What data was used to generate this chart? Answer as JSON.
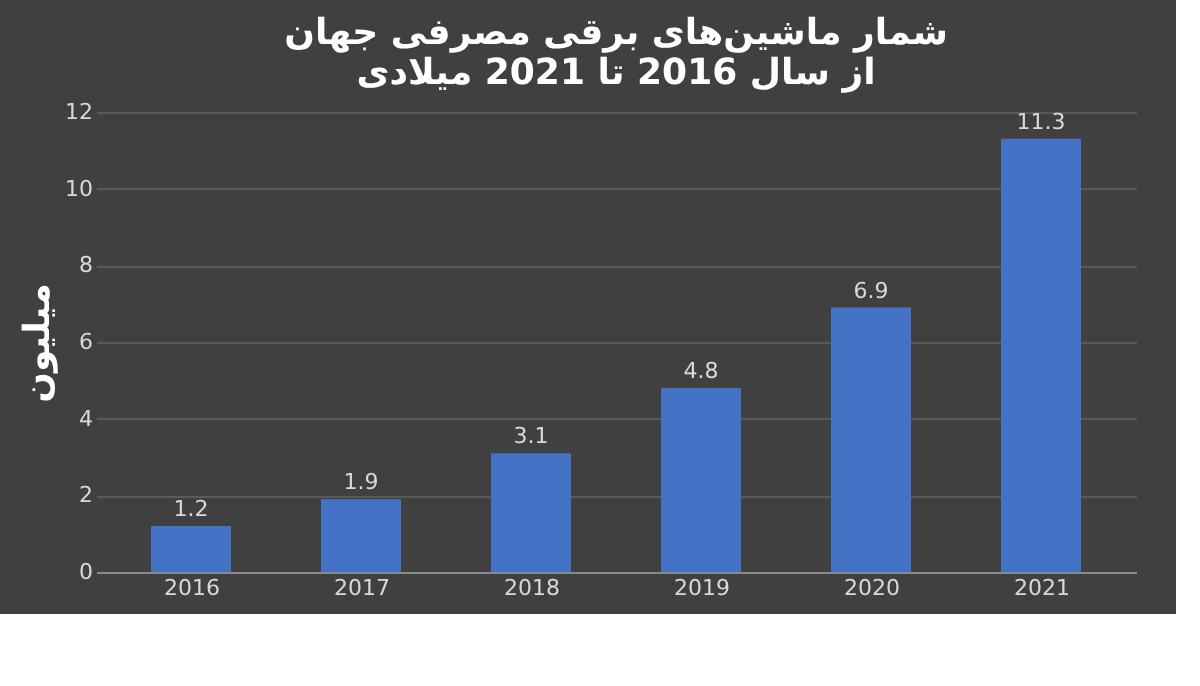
{
  "chart_data": {
    "type": "bar",
    "title": [
      "شمار ماشین‌های برقی مصرفی جهان",
      "از سال 2016  تا 2021 میلادی"
    ],
    "ylabel": "میلیون",
    "categories": [
      "2016",
      "2017",
      "2018",
      "2019",
      "2020",
      "2021"
    ],
    "values": [
      1.2,
      1.9,
      3.1,
      4.8,
      6.9,
      11.3
    ],
    "color": "#4472c4",
    "ylim": [
      0,
      12
    ],
    "yticks": [
      0,
      2,
      4,
      6,
      8,
      10,
      12
    ],
    "grid": "y",
    "data_labels": true
  }
}
